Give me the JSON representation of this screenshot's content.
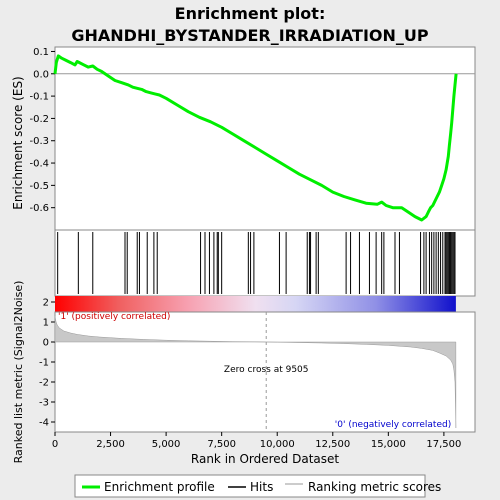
{
  "chart_data": {
    "type": "line",
    "title_line1": "Enrichment plot:",
    "title_line2": "GHANDHI_BYSTANDER_IRRADIATION_UP",
    "es_panel": {
      "ylabel": "Enrichment score (ES)",
      "ylim": [
        -0.7,
        0.12
      ],
      "yticks": [
        "0.1",
        "0.0",
        "-0.1",
        "-0.2",
        "-0.3",
        "-0.4",
        "-0.5",
        "-0.6"
      ],
      "ytick_values": [
        0.1,
        0.0,
        -0.1,
        -0.2,
        -0.3,
        -0.4,
        -0.5,
        -0.6
      ],
      "series": [
        {
          "name": "Enrichment profile",
          "color": "#00ee00",
          "x": [
            0,
            60,
            150,
            300,
            500,
            700,
            900,
            1000,
            1100,
            1300,
            1500,
            1700,
            1900,
            2100,
            2400,
            2700,
            3000,
            3150,
            3300,
            3500,
            3700,
            3900,
            4100,
            4300,
            4500,
            4700,
            5000,
            5500,
            6000,
            6500,
            7000,
            7500,
            8000,
            8500,
            9000,
            9500,
            10000,
            10500,
            11000,
            11500,
            12000,
            12500,
            13000,
            13500,
            14000,
            14500,
            14700,
            14900,
            15200,
            15600,
            15900,
            16200,
            16500,
            16700,
            16800,
            16900,
            17000,
            17100,
            17200,
            17300,
            17400,
            17500,
            17600,
            17700,
            17750,
            17800,
            17850,
            17900,
            17950,
            18000,
            18050
          ],
          "y": [
            0.0,
            0.05,
            0.08,
            0.07,
            0.06,
            0.05,
            0.04,
            0.055,
            0.05,
            0.04,
            0.03,
            0.035,
            0.02,
            0.01,
            -0.01,
            -0.03,
            -0.04,
            -0.045,
            -0.05,
            -0.06,
            -0.065,
            -0.07,
            -0.08,
            -0.085,
            -0.09,
            -0.095,
            -0.11,
            -0.14,
            -0.17,
            -0.195,
            -0.215,
            -0.24,
            -0.27,
            -0.3,
            -0.33,
            -0.36,
            -0.39,
            -0.42,
            -0.45,
            -0.475,
            -0.5,
            -0.53,
            -0.55,
            -0.565,
            -0.58,
            -0.585,
            -0.575,
            -0.59,
            -0.6,
            -0.6,
            -0.62,
            -0.64,
            -0.655,
            -0.64,
            -0.62,
            -0.6,
            -0.59,
            -0.57,
            -0.55,
            -0.53,
            -0.5,
            -0.47,
            -0.43,
            -0.37,
            -0.32,
            -0.27,
            -0.22,
            -0.16,
            -0.1,
            -0.05,
            0.0
          ]
        }
      ]
    },
    "hits_x": [
      120,
      1050,
      1700,
      3150,
      3250,
      3700,
      3800,
      4150,
      4450,
      4600,
      6550,
      6750,
      6950,
      7150,
      7300,
      7350,
      7500,
      8700,
      8800,
      8950,
      10100,
      10400,
      11350,
      11450,
      11500,
      11750,
      11850,
      13100,
      13300,
      13700,
      14150,
      14450,
      14700,
      14800,
      15300,
      15500,
      16450,
      16600,
      16700,
      16850,
      16950,
      17050,
      17150,
      17250,
      17350,
      17450,
      17550,
      17600,
      17650,
      17700,
      17750,
      17800,
      17850,
      17900,
      17950,
      18000
    ],
    "metric_panel": {
      "ylabel": "Ranked list metric (Signal2Noise)",
      "xlabel": "Rank in Ordered Dataset",
      "ylim": [
        -4.5,
        1.5
      ],
      "yticks": [
        "2",
        "1",
        "0",
        "-1",
        "-2",
        "-3",
        "-4"
      ],
      "ytick_values": [
        2,
        1,
        0,
        -1,
        -2,
        -3,
        -4
      ],
      "xticks": [
        "0",
        "2,500",
        "5,000",
        "7,500",
        "10,000",
        "12,500",
        "15,000",
        "17,500"
      ],
      "xtick_values": [
        0,
        2500,
        5000,
        7500,
        10000,
        12500,
        15000,
        17500
      ],
      "xlim": [
        0,
        18900
      ],
      "zero_cross": 9505,
      "zero_cross_label": "Zero cross at 9505",
      "pos_label": "'1' (positively correlated)",
      "neg_label": "'0' (negatively correlated)",
      "x": [
        0,
        50,
        100,
        200,
        400,
        700,
        1000,
        1500,
        2000,
        3000,
        4000,
        5000,
        6000,
        7000,
        8000,
        9000,
        9505,
        10000,
        11000,
        12000,
        13000,
        14000,
        15000,
        16000,
        16500,
        17000,
        17300,
        17600,
        17800,
        17900,
        17950,
        18000,
        18020,
        18040
      ],
      "y": [
        1.3,
        1.0,
        0.85,
        0.7,
        0.55,
        0.45,
        0.38,
        0.3,
        0.25,
        0.18,
        0.13,
        0.09,
        0.06,
        0.04,
        0.02,
        0.01,
        0.0,
        -0.01,
        -0.03,
        -0.05,
        -0.08,
        -0.12,
        -0.17,
        -0.25,
        -0.32,
        -0.42,
        -0.55,
        -0.7,
        -0.9,
        -1.1,
        -1.4,
        -2.0,
        -3.0,
        -4.3
      ]
    },
    "legend": [
      {
        "label": "Enrichment profile",
        "color": "#00ee00"
      },
      {
        "label": "Hits",
        "color": "#000000"
      },
      {
        "label": "Ranking metric scores",
        "color": "#bbbbbb"
      }
    ]
  }
}
